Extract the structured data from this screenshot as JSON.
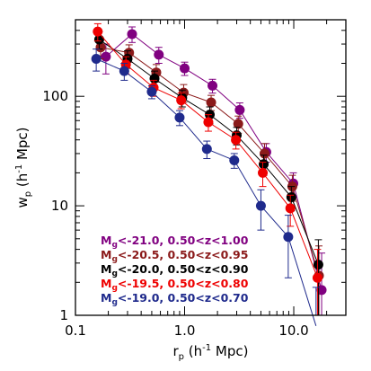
{
  "chart_data": {
    "type": "scatter",
    "title": "",
    "xlabel": {
      "base": "r",
      "sub": "p",
      "rest": " (h",
      "sup": "-1",
      "end": " Mpc)"
    },
    "ylabel": {
      "base": "w",
      "sub": "p",
      "rest": " (h",
      "sup": "-1",
      "end": " Mpc)"
    },
    "xscale": "log",
    "yscale": "log",
    "xlim": [
      0.1,
      30
    ],
    "ylim": [
      1,
      500
    ],
    "x_ticks": [
      {
        "value": 0.1,
        "label": "0.1"
      },
      {
        "value": 1.0,
        "label": "1.0"
      },
      {
        "value": 10.0,
        "label": "10.0"
      }
    ],
    "y_ticks": [
      {
        "value": 1,
        "label": "1"
      },
      {
        "value": 10,
        "label": "10"
      },
      {
        "value": 100,
        "label": "100"
      }
    ],
    "legend_position": "bottom-left",
    "series": [
      {
        "name": "Mg<-21.0, 0.50<z<1.00",
        "legend": {
          "pre": "M",
          "sub": "g",
          "post": "<-21.0, 0.50<z<1.00"
        },
        "color": "#800080",
        "x": [
          0.19,
          0.33,
          0.58,
          1.0,
          1.8,
          3.2,
          5.6,
          9.9,
          18.0
        ],
        "y": [
          230,
          370,
          240,
          180,
          125,
          75,
          31,
          16,
          1.7
        ],
        "err": [
          70,
          60,
          40,
          25,
          18,
          12,
          6,
          4,
          2
        ]
      },
      {
        "name": "Mg<-20.5, 0.50<z<0.95",
        "legend": {
          "pre": "M",
          "sub": "g",
          "post": "<-20.5, 0.50<z<0.95"
        },
        "color": "#8b1a1a",
        "x": [
          0.17,
          0.31,
          0.55,
          0.98,
          1.75,
          3.1,
          5.4,
          9.7,
          17.0
        ],
        "y": [
          280,
          250,
          165,
          108,
          88,
          56,
          30,
          15,
          2.3
        ],
        "err": [
          60,
          45,
          30,
          20,
          14,
          10,
          7,
          4,
          2
        ]
      },
      {
        "name": "Mg<-20.0, 0.50<z<0.90",
        "legend": {
          "pre": "M",
          "sub": "g",
          "post": "<-20.0, 0.50<z<0.90"
        },
        "color": "#000000",
        "x": [
          0.165,
          0.3,
          0.53,
          0.95,
          1.7,
          3.0,
          5.3,
          9.5,
          16.8
        ],
        "y": [
          330,
          220,
          145,
          97,
          68,
          44,
          24,
          12,
          2.9
        ],
        "err": [
          60,
          40,
          25,
          17,
          12,
          8,
          5,
          3,
          2
        ]
      },
      {
        "name": "Mg<-19.5, 0.50<z<0.80",
        "legend": {
          "pre": "M",
          "sub": "g",
          "post": "<-19.5, 0.50<z<0.80"
        },
        "color": "#ee0000",
        "x": [
          0.16,
          0.29,
          0.52,
          0.93,
          1.65,
          2.95,
          5.2,
          9.3,
          16.5
        ],
        "y": [
          390,
          195,
          120,
          92,
          58,
          40,
          20,
          9.5,
          2.2
        ],
        "err": [
          70,
          35,
          20,
          15,
          10,
          7,
          5,
          3,
          1.8
        ]
      },
      {
        "name": "Mg<-19.0, 0.50<z<0.70",
        "legend": {
          "pre": "M",
          "sub": "g",
          "post": "<-19.0, 0.50<z<0.70"
        },
        "color": "#1f2a8c",
        "x": [
          0.155,
          0.28,
          0.5,
          0.9,
          1.6,
          2.85,
          5.0,
          8.9,
          16.0
        ],
        "y": [
          220,
          170,
          110,
          64,
          33,
          26,
          10,
          5.2,
          0.8
        ],
        "err": [
          50,
          30,
          15,
          10,
          6,
          4,
          4,
          3,
          1
        ]
      }
    ]
  }
}
